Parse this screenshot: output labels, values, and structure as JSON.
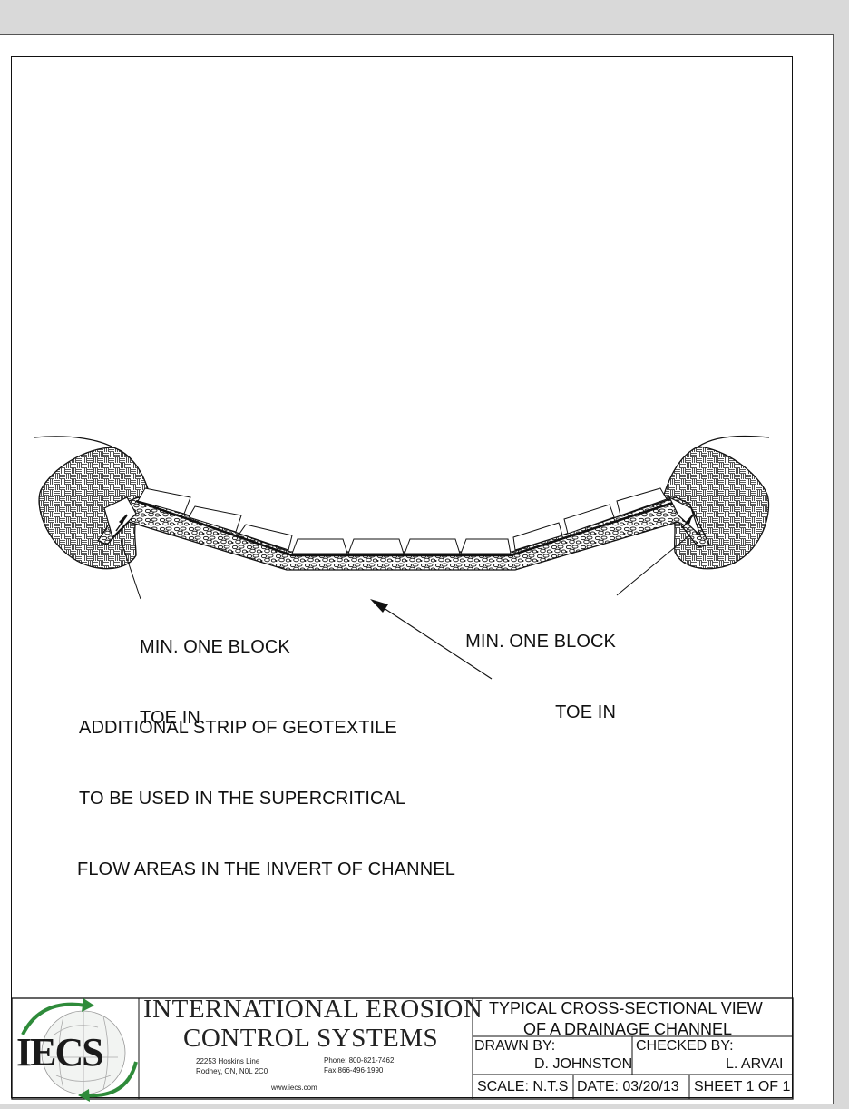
{
  "notes": {
    "toe_left_line1": "MIN. ONE BLOCK",
    "toe_left_line2": "TOE IN",
    "toe_right_line1": "MIN. ONE BLOCK",
    "toe_right_line2": "TOE IN",
    "geotextile_line1": "ADDITIONAL STRIP OF GEOTEXTILE",
    "geotextile_line2": "TO BE USED IN THE SUPERCRITICAL",
    "geotextile_line3": "FLOW AREAS IN THE INVERT OF CHANNEL"
  },
  "title_block": {
    "logo_text": "IECS",
    "company_line1": "INTERNATIONAL EROSION",
    "company_line2": "CONTROL SYSTEMS",
    "address": "22253 Hoskins Line\nRodney, ON, N0L 2C0",
    "phone_fax": "Phone: 800-821-7462\nFax:866-496-1990",
    "website": "www.iecs.com",
    "title_line1": "TYPICAL CROSS-SECTIONAL VIEW",
    "title_line2": "OF A DRAINAGE CHANNEL",
    "drawn_by_label": "DRAWN BY:",
    "drawn_by_value": "D. JOHNSTON",
    "checked_by_label": "CHECKED BY:",
    "checked_by_value": "L. ARVAI",
    "scale": "SCALE: N.T.S",
    "date": "DATE:  03/20/13",
    "sheet": "SHEET 1 OF 1"
  },
  "colors": {
    "line": "#111111",
    "logo_green": "#2e8b3a",
    "paper": "#ffffff"
  }
}
